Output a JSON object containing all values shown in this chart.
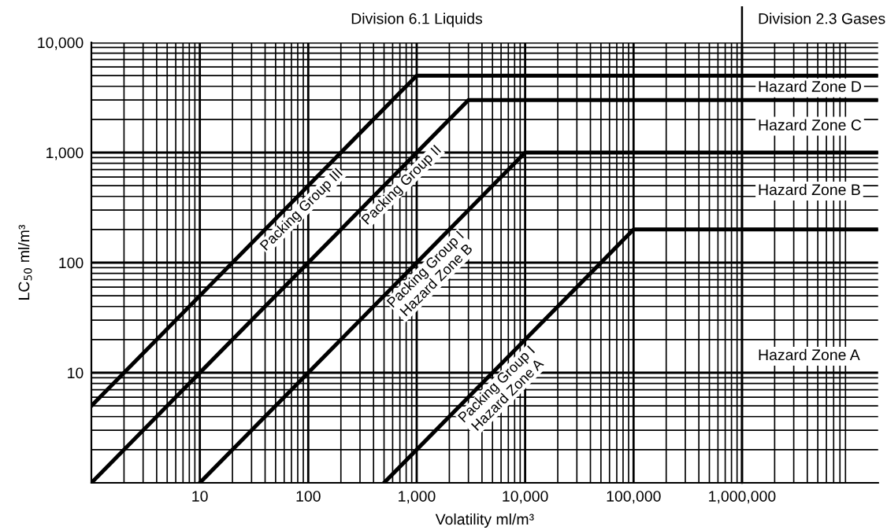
{
  "chart_data": {
    "type": "line",
    "xlabel": "Volatility ml/m³",
    "ylabel": "LC$_{50}$ ml/m³",
    "log": "xy",
    "xlim": [
      1,
      18000000
    ],
    "ylim": [
      1,
      10000
    ],
    "xticks": [
      {
        "value": 10,
        "label": "10"
      },
      {
        "value": 100,
        "label": "100"
      },
      {
        "value": 1000,
        "label": "1,000"
      },
      {
        "value": 10000,
        "label": "10,000"
      },
      {
        "value": 100000,
        "label": "100,000"
      },
      {
        "value": 1000000,
        "label": "1,000,000"
      }
    ],
    "yticks": [
      {
        "value": 10,
        "label": "10"
      },
      {
        "value": 100,
        "label": "100"
      },
      {
        "value": 1000,
        "label": "1,000"
      },
      {
        "value": 10000,
        "label": "10,000"
      }
    ],
    "grid": true,
    "line_style": "solid",
    "series": [
      {
        "name": "Packing Group III",
        "color": "#000000",
        "x": [
          1,
          1000,
          18000000
        ],
        "values": [
          5,
          5000,
          5000
        ]
      },
      {
        "name": "Packing Group II",
        "color": "#000000",
        "x": [
          1,
          3000,
          18000000
        ],
        "values": [
          1,
          3000,
          3000
        ]
      },
      {
        "name": "Packing Group I\nHazard Zone B",
        "color": "#000000",
        "x": [
          10,
          10000,
          18000000
        ],
        "values": [
          1,
          1000,
          1000
        ]
      },
      {
        "name": "Packing Group I\nHazard Zone A",
        "color": "#000000",
        "x": [
          500,
          100000,
          18000000
        ],
        "values": [
          1,
          200,
          200
        ]
      }
    ],
    "ref_lines": [
      {
        "axis": "x",
        "value": 1000000,
        "color": "#000000"
      }
    ],
    "annotations": [
      "Division 6.1 Liquids",
      "Division 2.3 Gases",
      "Hazard Zone D",
      "Hazard Zone C",
      "Hazard Zone B",
      "Hazard Zone A"
    ]
  }
}
